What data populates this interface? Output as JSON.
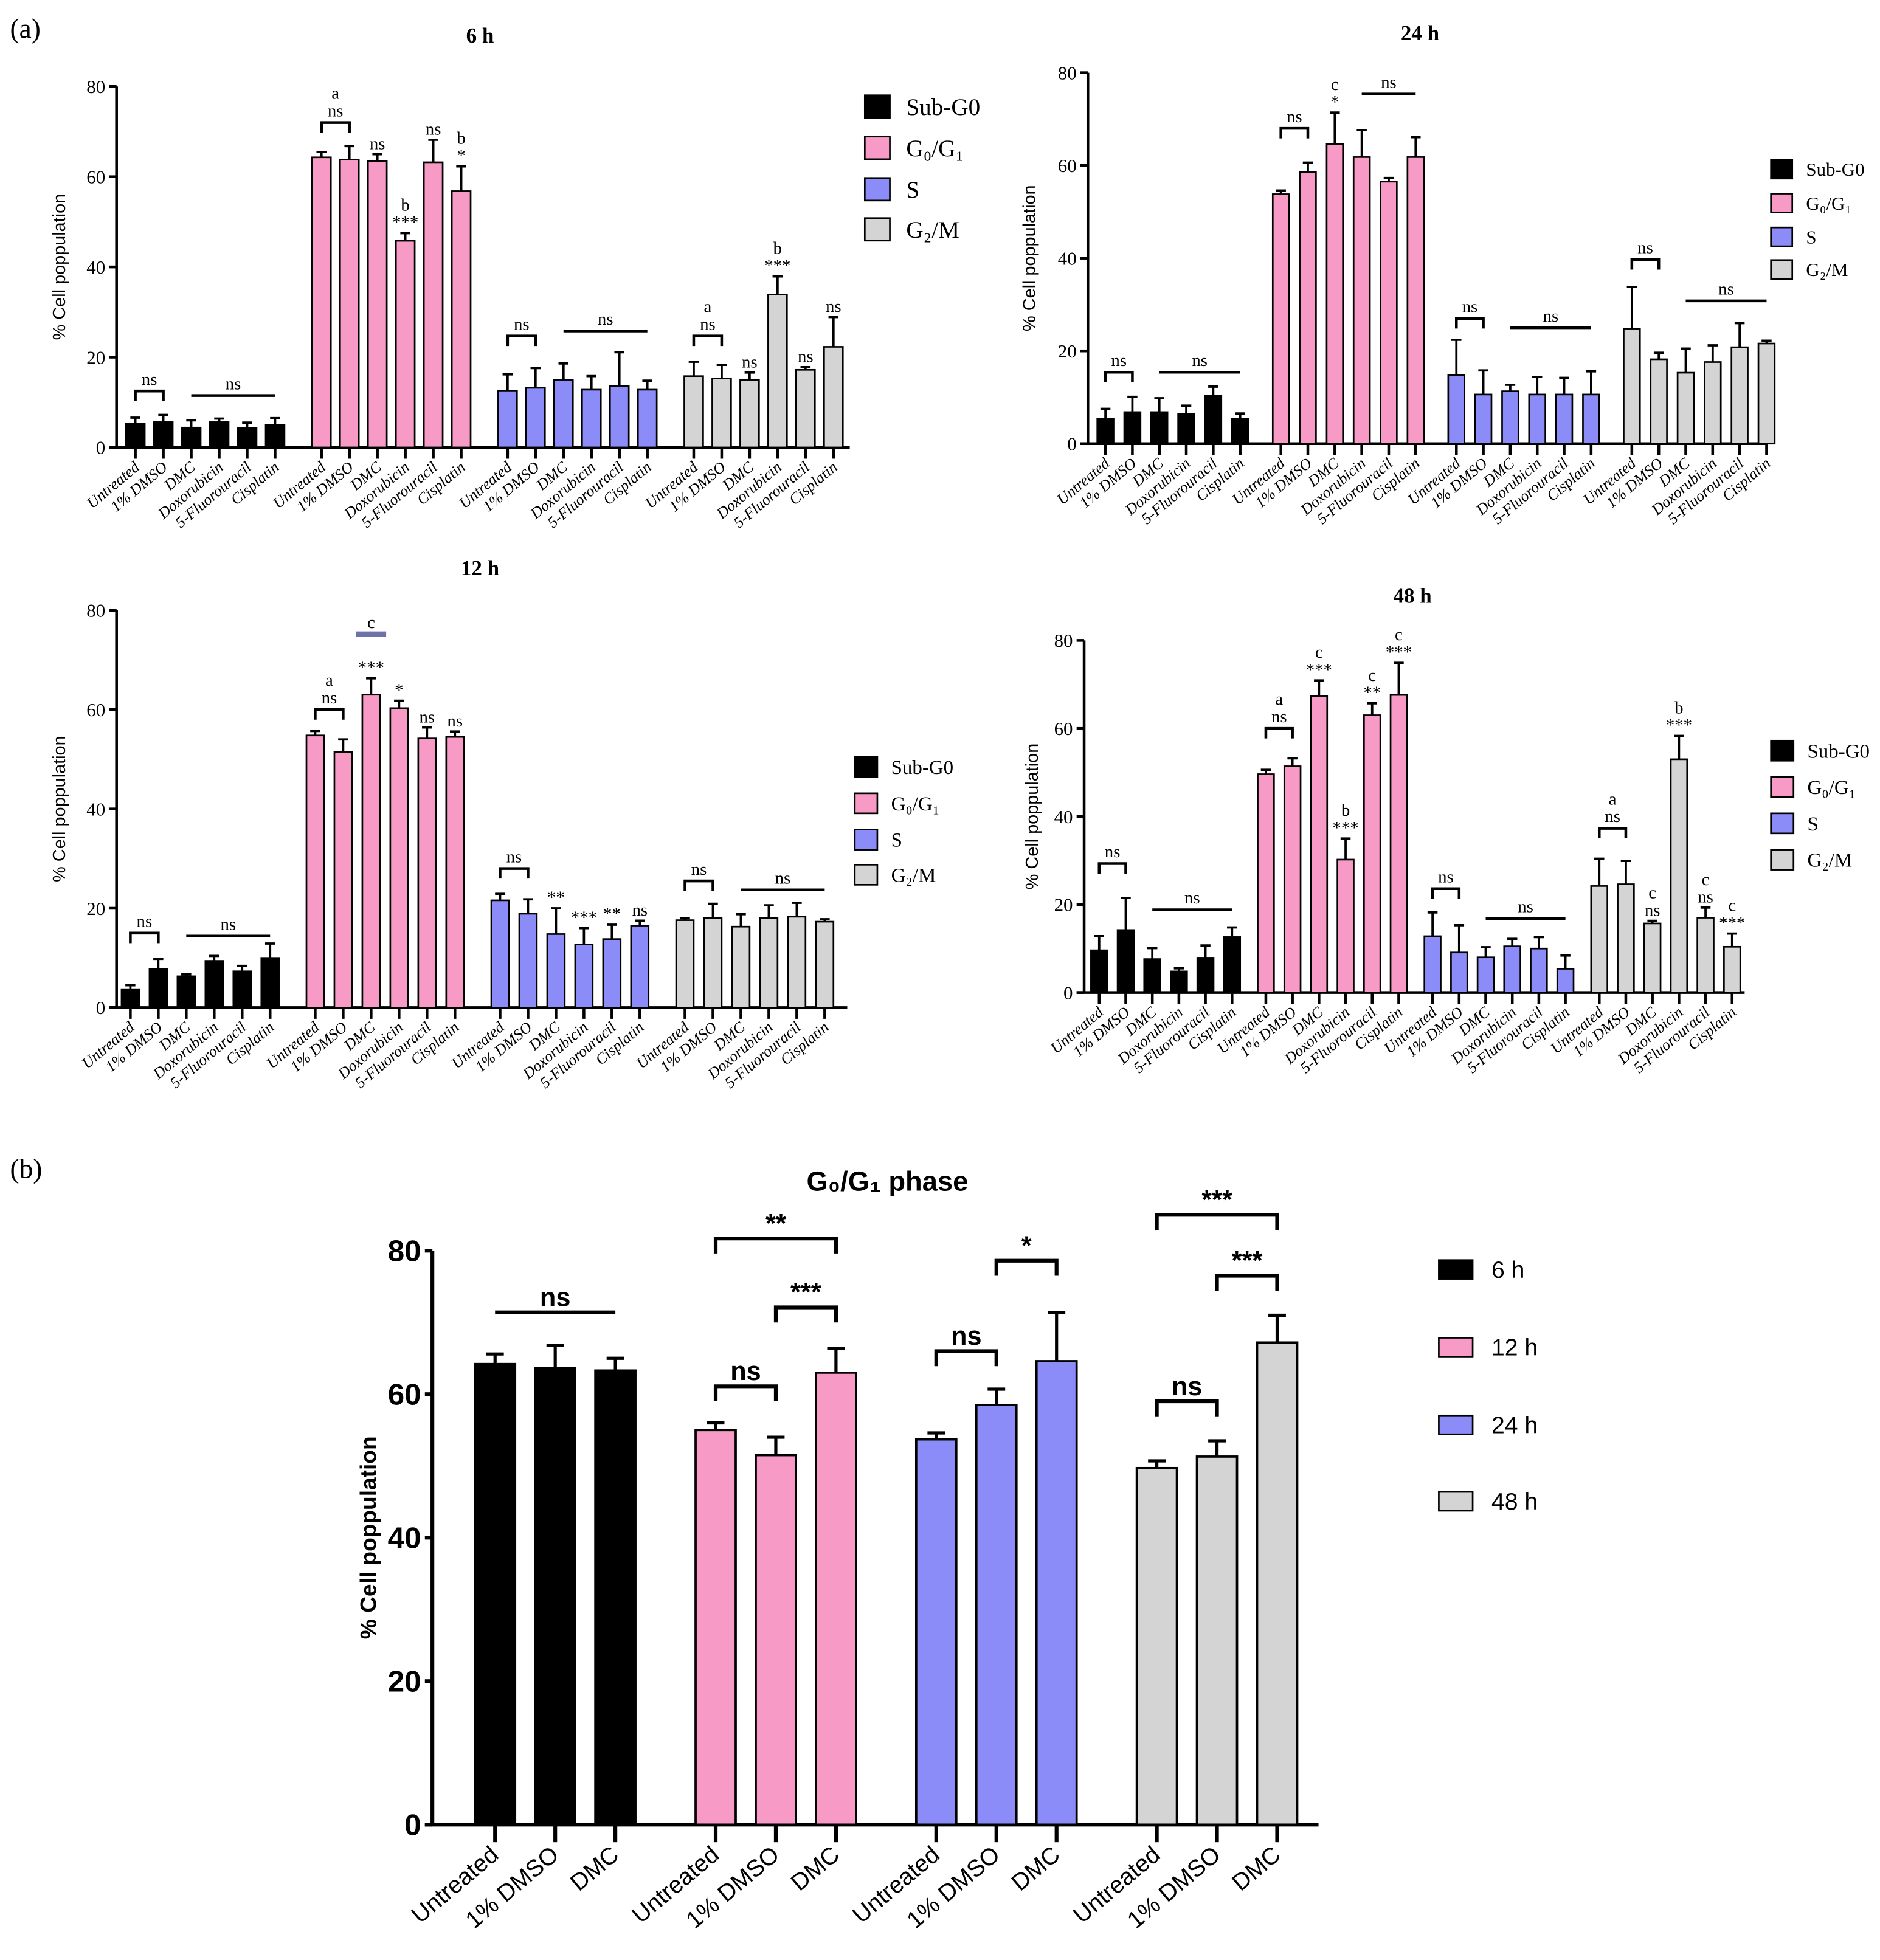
{
  "figure": {
    "panel_a_label": "(a)",
    "panel_b_label": "(b)"
  },
  "chart_data": [
    {
      "id": "6h",
      "type": "bar",
      "title": "6 h",
      "ylabel": "% Cell poppulation",
      "ylim": [
        0,
        80
      ],
      "yticks": [
        "0",
        "20",
        "40",
        "60",
        "80"
      ],
      "legend_position": "right",
      "categories": [
        "Untreated",
        "1% DMSO",
        "DMC",
        "Doxorubicin",
        "5-Fluorouracil",
        "Cisplatin"
      ],
      "series": [
        {
          "name": "Sub-G0",
          "color": "#000000",
          "values": [
            5.2,
            5.6,
            4.4,
            5.6,
            4.3,
            5.0
          ],
          "errors": [
            1.4,
            1.6,
            1.6,
            0.8,
            1.2,
            1.5
          ]
        },
        {
          "name": "G₀/G₁",
          "color": "#f79ac6",
          "values": [
            64.3,
            63.8,
            63.5,
            45.8,
            63.2,
            56.8
          ],
          "errors": [
            1.2,
            3.0,
            1.5,
            1.7,
            5.0,
            5.5
          ]
        },
        {
          "name": "S",
          "color": "#8c8cf8",
          "values": [
            12.6,
            13.2,
            15.0,
            12.8,
            13.6,
            12.8
          ],
          "errors": [
            3.6,
            4.4,
            3.6,
            3.0,
            7.5,
            2.0
          ]
        },
        {
          "name": "G₂/M",
          "color": "#d4d4d4",
          "values": [
            15.8,
            15.3,
            15.0,
            33.9,
            17.2,
            22.3
          ],
          "errors": [
            3.2,
            3.0,
            1.6,
            4.0,
            0.6,
            6.6
          ]
        }
      ],
      "annotations": [
        {
          "type": "bracket",
          "series": 0,
          "from": 0,
          "to": 1,
          "level": 12.5,
          "labels": [
            "ns"
          ]
        },
        {
          "type": "line",
          "series": 0,
          "from": 2,
          "to": 5,
          "level": 11.5,
          "labels": [
            "ns"
          ]
        },
        {
          "type": "bracket",
          "series": 1,
          "from": 0,
          "to": 1,
          "level": 72,
          "labels": [
            "a",
            "ns"
          ]
        },
        {
          "type": "mark",
          "series": 1,
          "index": 2,
          "labels": [
            "ns"
          ]
        },
        {
          "type": "mark",
          "series": 1,
          "index": 3,
          "labels": [
            "b",
            "***"
          ]
        },
        {
          "type": "mark",
          "series": 1,
          "index": 4,
          "labels": [
            "ns"
          ]
        },
        {
          "type": "mark",
          "series": 1,
          "index": 5,
          "labels": [
            "b",
            "*"
          ]
        },
        {
          "type": "bracket",
          "series": 2,
          "from": 0,
          "to": 1,
          "level": 24.7,
          "labels": [
            "ns"
          ]
        },
        {
          "type": "line",
          "series": 2,
          "from": 2,
          "to": 5,
          "level": 25.8,
          "labels": [
            "ns"
          ]
        },
        {
          "type": "bracket",
          "series": 3,
          "from": 0,
          "to": 1,
          "level": 24.7,
          "labels": [
            "a",
            "ns"
          ]
        },
        {
          "type": "mark",
          "series": 3,
          "index": 2,
          "labels": [
            "ns"
          ]
        },
        {
          "type": "mark",
          "series": 3,
          "index": 3,
          "labels": [
            "b",
            "***"
          ]
        },
        {
          "type": "mark",
          "series": 3,
          "index": 4,
          "labels": [
            "ns"
          ]
        },
        {
          "type": "mark",
          "series": 3,
          "index": 5,
          "labels": [
            "ns"
          ]
        }
      ]
    },
    {
      "id": "24h",
      "type": "bar",
      "title": "24 h",
      "ylabel": "% Cell poppulation",
      "ylim": [
        0,
        80
      ],
      "yticks": [
        "0",
        "20",
        "40",
        "60",
        "80"
      ],
      "legend_position": "right",
      "categories": [
        "Untreated",
        "1% DMSO",
        "DMC",
        "Doxorubicin",
        "5-Fluorouracil",
        "Cisplatin"
      ],
      "series": [
        {
          "name": "Sub-G0",
          "color": "#000000",
          "values": [
            5.3,
            6.8,
            6.8,
            6.4,
            10.3,
            5.3
          ],
          "errors": [
            2.2,
            3.3,
            3.0,
            1.8,
            2.0,
            1.2
          ]
        },
        {
          "name": "G₀/G₁",
          "color": "#f79ac6",
          "values": [
            53.8,
            58.6,
            64.6,
            61.8,
            56.5,
            61.8
          ],
          "errors": [
            0.8,
            2.0,
            6.8,
            5.8,
            0.8,
            4.3
          ]
        },
        {
          "name": "S",
          "color": "#8c8cf8",
          "values": [
            14.8,
            10.6,
            11.3,
            10.6,
            10.6,
            10.6
          ],
          "errors": [
            7.6,
            5.2,
            1.4,
            3.8,
            3.6,
            5.0
          ]
        },
        {
          "name": "G₂/M",
          "color": "#d4d4d4",
          "values": [
            24.8,
            18.2,
            15.3,
            17.6,
            20.8,
            21.6
          ],
          "errors": [
            9.0,
            1.4,
            5.2,
            3.6,
            5.2,
            0.6
          ]
        }
      ],
      "annotations": [
        {
          "type": "bracket",
          "series": 0,
          "from": 0,
          "to": 1,
          "level": 15.4,
          "labels": [
            "ns"
          ]
        },
        {
          "type": "line",
          "series": 0,
          "from": 2,
          "to": 5,
          "level": 15.4,
          "labels": [
            "ns"
          ]
        },
        {
          "type": "bracket",
          "series": 1,
          "from": 0,
          "to": 1,
          "level": 68,
          "labels": [
            "ns"
          ]
        },
        {
          "type": "mark",
          "series": 1,
          "index": 2,
          "labels": [
            "c",
            "*"
          ]
        },
        {
          "type": "line",
          "series": 1,
          "from": 3,
          "to": 5,
          "level": 75.4,
          "labels": [
            "ns"
          ]
        },
        {
          "type": "bracket",
          "series": 2,
          "from": 0,
          "to": 1,
          "level": 27,
          "labels": [
            "ns"
          ]
        },
        {
          "type": "line",
          "series": 2,
          "from": 2,
          "to": 5,
          "level": 25,
          "labels": [
            "ns"
          ]
        },
        {
          "type": "bracket",
          "series": 3,
          "from": 0,
          "to": 1,
          "level": 39.7,
          "labels": [
            "ns"
          ]
        },
        {
          "type": "line",
          "series": 3,
          "from": 2,
          "to": 5,
          "level": 30.8,
          "labels": [
            "ns"
          ]
        }
      ]
    },
    {
      "id": "12h",
      "type": "bar",
      "title": "12 h",
      "ylabel": "% Cell poppulation",
      "ylim": [
        0,
        80
      ],
      "yticks": [
        "0",
        "20",
        "40",
        "60",
        "80"
      ],
      "legend_position": "right",
      "categories": [
        "Untreated",
        "1% DMSO",
        "DMC",
        "Doxorubicin",
        "5-Fluorouracil",
        "Cisplatin"
      ],
      "series": [
        {
          "name": "Sub-G0",
          "color": "#000000",
          "values": [
            3.7,
            7.8,
            6.3,
            9.4,
            7.3,
            10.0
          ],
          "errors": [
            0.8,
            2.0,
            0.4,
            1.0,
            1.1,
            2.9
          ]
        },
        {
          "name": "G₀/G₁",
          "color": "#f79ac6",
          "values": [
            54.8,
            51.5,
            63.0,
            60.3,
            54.2,
            54.5
          ],
          "errors": [
            0.9,
            2.5,
            3.3,
            1.5,
            2.2,
            1.1
          ]
        },
        {
          "name": "S",
          "color": "#8c8cf8",
          "values": [
            21.6,
            18.9,
            14.8,
            12.7,
            13.8,
            16.5
          ],
          "errors": [
            1.3,
            2.9,
            5.2,
            3.3,
            2.9,
            1.0
          ]
        },
        {
          "name": "G₂/M",
          "color": "#d4d4d4",
          "values": [
            17.6,
            18.0,
            16.3,
            18.0,
            18.3,
            17.3
          ],
          "errors": [
            0.4,
            2.9,
            2.5,
            2.6,
            2.8,
            0.5
          ]
        }
      ],
      "annotations": [
        {
          "type": "bracket",
          "series": 0,
          "from": 0,
          "to": 1,
          "level": 15,
          "labels": [
            "ns"
          ]
        },
        {
          "type": "line",
          "series": 0,
          "from": 2,
          "to": 5,
          "level": 14.4,
          "labels": [
            "ns"
          ]
        },
        {
          "type": "bracket",
          "series": 1,
          "from": 0,
          "to": 1,
          "level": 60,
          "labels": [
            "a",
            "ns"
          ]
        },
        {
          "type": "line",
          "series": 1,
          "from": 2,
          "to": 2,
          "level": 75.2,
          "labels": [
            "c"
          ],
          "color": "#6f72a8"
        },
        {
          "type": "mark",
          "series": 1,
          "index": 2,
          "labels": [
            "***"
          ]
        },
        {
          "type": "mark",
          "series": 1,
          "index": 3,
          "labels": [
            "*"
          ]
        },
        {
          "type": "mark",
          "series": 1,
          "index": 4,
          "labels": [
            "ns"
          ]
        },
        {
          "type": "mark",
          "series": 1,
          "index": 5,
          "labels": [
            "ns"
          ]
        },
        {
          "type": "bracket",
          "series": 2,
          "from": 0,
          "to": 1,
          "level": 28,
          "labels": [
            "ns"
          ]
        },
        {
          "type": "mark",
          "series": 2,
          "index": 2,
          "labels": [
            "**"
          ]
        },
        {
          "type": "mark",
          "series": 2,
          "index": 3,
          "labels": [
            "***"
          ]
        },
        {
          "type": "mark",
          "series": 2,
          "index": 4,
          "labels": [
            "**"
          ]
        },
        {
          "type": "mark",
          "series": 2,
          "index": 5,
          "labels": [
            "ns"
          ]
        },
        {
          "type": "bracket",
          "series": 3,
          "from": 0,
          "to": 1,
          "level": 25.5,
          "labels": [
            "ns"
          ]
        },
        {
          "type": "line",
          "series": 3,
          "from": 2,
          "to": 5,
          "level": 23.7,
          "labels": [
            "ns"
          ]
        }
      ]
    },
    {
      "id": "48h",
      "type": "bar",
      "title": "48 h",
      "ylabel": "% Cell poppulation",
      "ylim": [
        0,
        80
      ],
      "yticks": [
        "0",
        "20",
        "40",
        "60",
        "80"
      ],
      "legend_position": "right",
      "categories": [
        "Untreated",
        "1% DMSO",
        "DMC",
        "Doxorubicin",
        "5-Fluorouracil",
        "Cisplatin"
      ],
      "series": [
        {
          "name": "Sub-G0",
          "color": "#000000",
          "values": [
            9.6,
            14.2,
            7.6,
            4.8,
            7.9,
            12.6
          ],
          "errors": [
            3.2,
            7.3,
            2.5,
            0.7,
            2.8,
            2.2
          ]
        },
        {
          "name": "G₀/G₁",
          "color": "#f79ac6",
          "values": [
            49.6,
            51.4,
            67.3,
            30.2,
            63.0,
            67.6
          ],
          "errors": [
            1.0,
            1.8,
            3.6,
            4.8,
            2.7,
            7.3
          ]
        },
        {
          "name": "S",
          "color": "#8c8cf8",
          "values": [
            12.8,
            9.1,
            8.0,
            10.5,
            10.0,
            5.4
          ],
          "errors": [
            5.4,
            6.2,
            2.3,
            1.7,
            2.6,
            3.0
          ]
        },
        {
          "name": "G₂/M",
          "color": "#d4d4d4",
          "values": [
            24.2,
            24.6,
            15.7,
            53.0,
            17.0,
            10.4
          ],
          "errors": [
            6.2,
            5.3,
            0.6,
            5.3,
            2.3,
            3.0
          ]
        }
      ],
      "annotations": [
        {
          "type": "bracket",
          "series": 0,
          "from": 0,
          "to": 1,
          "level": 29.3,
          "labels": [
            "ns"
          ]
        },
        {
          "type": "line",
          "series": 0,
          "from": 2,
          "to": 5,
          "level": 18.8,
          "labels": [
            "ns"
          ]
        },
        {
          "type": "bracket",
          "series": 1,
          "from": 0,
          "to": 1,
          "level": 60,
          "labels": [
            "a",
            "ns"
          ]
        },
        {
          "type": "mark",
          "series": 1,
          "index": 2,
          "labels": [
            "c",
            "***"
          ]
        },
        {
          "type": "mark",
          "series": 1,
          "index": 3,
          "labels": [
            "b",
            "***"
          ]
        },
        {
          "type": "mark",
          "series": 1,
          "index": 4,
          "labels": [
            "c",
            "**"
          ]
        },
        {
          "type": "mark",
          "series": 1,
          "index": 5,
          "labels": [
            "c",
            "***"
          ]
        },
        {
          "type": "bracket",
          "series": 2,
          "from": 0,
          "to": 1,
          "level": 23.6,
          "labels": [
            "ns"
          ]
        },
        {
          "type": "line",
          "series": 2,
          "from": 2,
          "to": 5,
          "level": 16.8,
          "labels": [
            "ns"
          ]
        },
        {
          "type": "bracket",
          "series": 3,
          "from": 0,
          "to": 1,
          "level": 37.3,
          "labels": [
            "a",
            "ns"
          ]
        },
        {
          "type": "mark",
          "series": 3,
          "index": 2,
          "labels": [
            "c",
            "ns"
          ]
        },
        {
          "type": "mark",
          "series": 3,
          "index": 3,
          "labels": [
            "b",
            "***"
          ]
        },
        {
          "type": "mark",
          "series": 3,
          "index": 4,
          "labels": [
            "c",
            "ns"
          ]
        },
        {
          "type": "mark",
          "series": 3,
          "index": 5,
          "labels": [
            "c",
            "***"
          ]
        }
      ]
    },
    {
      "id": "g0g1",
      "type": "bar",
      "title": "G₀/G₁ phase",
      "ylabel": "% Cell poppulation",
      "ylim": [
        0,
        80
      ],
      "yticks": [
        "0",
        "20",
        "40",
        "60",
        "80"
      ],
      "legend_position": "right",
      "categories": [
        "Untreated",
        "1% DMSO",
        "DMC"
      ],
      "series": [
        {
          "name": "6 h",
          "color": "#000000",
          "values": [
            64.2,
            63.6,
            63.3
          ],
          "errors": [
            1.4,
            3.2,
            1.7
          ]
        },
        {
          "name": "12 h",
          "color": "#f79ac6",
          "values": [
            55.0,
            51.5,
            63.0
          ],
          "errors": [
            1.0,
            2.5,
            3.4
          ]
        },
        {
          "name": "24 h",
          "color": "#8c8cf8",
          "values": [
            53.7,
            58.5,
            64.6
          ],
          "errors": [
            0.9,
            2.2,
            6.8
          ]
        },
        {
          "name": "48 h",
          "color": "#d4d4d4",
          "values": [
            49.7,
            51.3,
            67.2
          ],
          "errors": [
            1.0,
            2.2,
            3.8
          ]
        }
      ],
      "annotations": [
        {
          "type": "line",
          "series": 0,
          "from": 0,
          "to": 2,
          "level": 71.4,
          "labels": [
            "ns"
          ]
        },
        {
          "type": "bracket",
          "series": 1,
          "from": 0,
          "to": 1,
          "level": 61.1,
          "labels": [
            "ns"
          ]
        },
        {
          "type": "bracket",
          "series": 1,
          "from": 1,
          "to": 2,
          "level": 72.1,
          "labels": [
            "***"
          ]
        },
        {
          "type": "bracket",
          "series": 1,
          "from": 0,
          "to": 2,
          "level": 81.7,
          "labels": [
            "**"
          ]
        },
        {
          "type": "bracket",
          "series": 2,
          "from": 0,
          "to": 1,
          "level": 66,
          "labels": [
            "ns"
          ]
        },
        {
          "type": "bracket",
          "series": 2,
          "from": 1,
          "to": 2,
          "level": 78.6,
          "labels": [
            "*"
          ]
        },
        {
          "type": "bracket",
          "series": 3,
          "from": 0,
          "to": 1,
          "level": 59,
          "labels": [
            "ns"
          ]
        },
        {
          "type": "bracket",
          "series": 3,
          "from": 1,
          "to": 2,
          "level": 76.5,
          "labels": [
            "***"
          ]
        },
        {
          "type": "bracket",
          "series": 3,
          "from": 0,
          "to": 2,
          "level": 85,
          "labels": [
            "***"
          ]
        }
      ]
    }
  ]
}
